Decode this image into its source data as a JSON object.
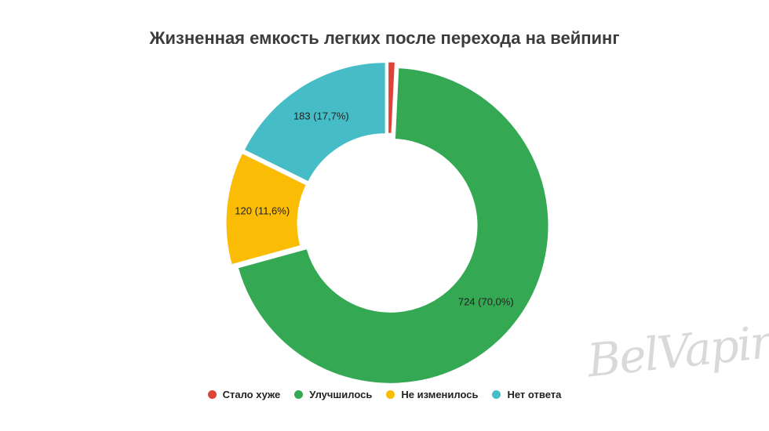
{
  "chart_data": {
    "type": "pie",
    "title": "Жизненная емкость легких после перехода на вейпинг",
    "categories": [
      "Стало хуже",
      "Улучшилось",
      "Не изменилось",
      "Нет ответа"
    ],
    "values": [
      8,
      724,
      120,
      183
    ],
    "data_labels": [
      "",
      "724 (70,0%)",
      "120 (11,6%)",
      "183 (17,7%)"
    ],
    "colors": [
      "#dc4437",
      "#34a853",
      "#fbbc05",
      "#46bdc6"
    ],
    "legend_position": "bottom",
    "donut": true
  },
  "watermark": "BelVaping"
}
